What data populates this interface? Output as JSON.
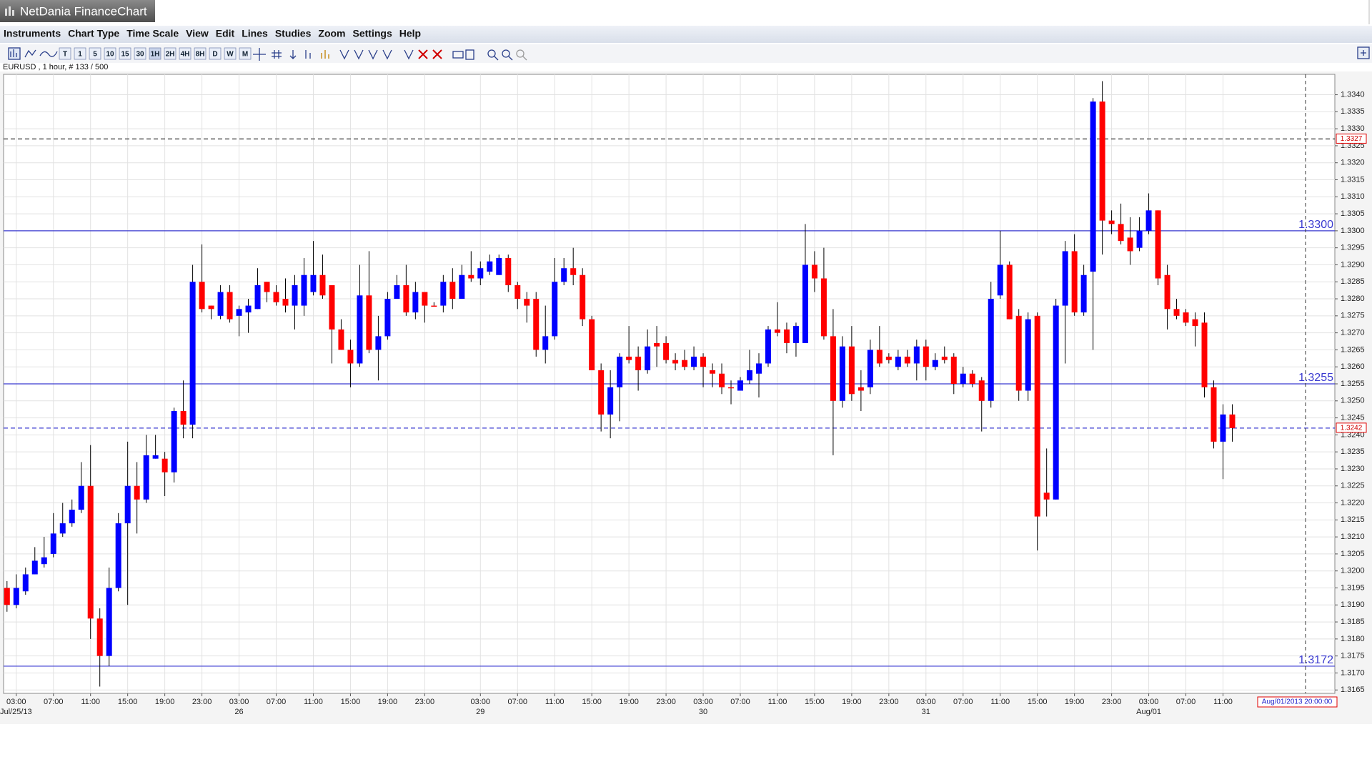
{
  "window": {
    "title": "NetDania FinanceChart"
  },
  "menu": [
    "Instruments",
    "Chart Type",
    "Time Scale",
    "View",
    "Edit",
    "Lines",
    "Studies",
    "Zoom",
    "Settings",
    "Help"
  ],
  "toolbar": [
    "T",
    "1",
    "5",
    "10",
    "15",
    "30",
    "1H",
    "2H",
    "4H",
    "8H",
    "D",
    "W",
    "M"
  ],
  "chart_data": {
    "type": "candlestick",
    "instrument_label": "EURUSD , 1 hour, # 133 / 500",
    "up_color": "#0000ff",
    "down_color": "#ff0000",
    "wick_color": "#000000",
    "grid": true,
    "ylim": [
      1.3164,
      1.3346
    ],
    "yticks": [
      1.3165,
      {
        "value": 1.317,
        "label": "1.3170"
      },
      1.3175,
      {
        "value": 1.318,
        "label": "1.3180"
      },
      1.3185,
      {
        "value": 1.319,
        "label": "1.3190"
      },
      1.3195,
      {
        "value": 1.32,
        "label": "1.3200"
      },
      1.3205,
      {
        "value": 1.321,
        "label": "1.3210"
      },
      1.3215,
      {
        "value": 1.322,
        "label": "1.3220"
      },
      1.3225,
      {
        "value": 1.323,
        "label": "1.3230"
      },
      1.3235,
      {
        "value": 1.324,
        "label": "1.3240"
      },
      1.3245,
      {
        "value": 1.325,
        "label": "1.3250"
      },
      1.3255,
      {
        "value": 1.326,
        "label": "1.3260"
      },
      1.3265,
      {
        "value": 1.327,
        "label": "1.3270"
      },
      1.3275,
      {
        "value": 1.328,
        "label": "1.3280"
      },
      1.3285,
      {
        "value": 1.329,
        "label": "1.3290"
      },
      1.3295,
      {
        "value": 1.33,
        "label": "1.3300"
      },
      1.3305,
      {
        "value": 1.331,
        "label": "1.3310"
      },
      1.3315,
      {
        "value": 1.332,
        "label": "1.3320"
      },
      1.3325,
      {
        "value": 1.333,
        "label": "1.3330"
      },
      1.3335,
      {
        "value": 1.334,
        "label": "1.3340"
      }
    ],
    "categories": [
      null,
      "03:00",
      null,
      null,
      null,
      "07:00",
      null,
      null,
      null,
      "11:00",
      null,
      null,
      null,
      "15:00",
      null,
      null,
      null,
      "19:00",
      null,
      null,
      null,
      "23:00",
      null,
      null,
      null,
      "03:00",
      null,
      null,
      null,
      "07:00",
      null,
      null,
      null,
      "11:00",
      null,
      null,
      null,
      "15:00",
      null,
      null,
      null,
      "19:00",
      null,
      null,
      null,
      "23:00",
      null,
      null,
      null,
      null,
      null,
      "03:00",
      null,
      null,
      null,
      "07:00",
      null,
      null,
      null,
      "11:00",
      null,
      null,
      null,
      "15:00",
      null,
      null,
      null,
      "19:00",
      null,
      null,
      null,
      "23:00",
      null,
      null,
      null,
      "03:00",
      null,
      null,
      null,
      "07:00",
      null,
      null,
      null,
      "11:00",
      null,
      null,
      null,
      "15:00",
      null,
      null,
      null,
      "19:00",
      null,
      null,
      null,
      "23:00",
      null,
      null,
      null,
      "03:00",
      null,
      null,
      null,
      "07:00",
      null,
      null,
      null,
      "11:00",
      null,
      null,
      null,
      "15:00",
      null,
      null,
      null,
      "19:00",
      null,
      null,
      null,
      "23:00",
      null,
      null,
      null,
      "03:00",
      null,
      null,
      null,
      "07:00",
      null,
      null,
      null,
      "11:00",
      null
    ],
    "category_dates": [
      null,
      "Jul/25/13",
      null,
      null,
      null,
      null,
      null,
      null,
      null,
      null,
      null,
      null,
      null,
      null,
      null,
      null,
      null,
      null,
      null,
      null,
      null,
      null,
      null,
      null,
      null,
      "26",
      null,
      null,
      null,
      null,
      null,
      null,
      null,
      null,
      null,
      null,
      null,
      null,
      null,
      null,
      null,
      null,
      null,
      null,
      null,
      null,
      null,
      null,
      null,
      null,
      null,
      "29",
      null,
      null,
      null,
      null,
      null,
      null,
      null,
      null,
      null,
      null,
      null,
      null,
      null,
      null,
      null,
      null,
      null,
      null,
      null,
      null,
      null,
      null,
      null,
      "30",
      null,
      null,
      null,
      null,
      null,
      null,
      null,
      null,
      null,
      null,
      null,
      null,
      null,
      null,
      null,
      null,
      null,
      null,
      null,
      null,
      null,
      null,
      null,
      "31",
      null,
      null,
      null,
      null,
      null,
      null,
      null,
      null,
      null,
      null,
      null,
      null,
      null,
      null,
      null,
      null,
      null,
      null,
      null,
      null,
      null,
      null,
      null,
      "Aug/01",
      null,
      null,
      null,
      null,
      null,
      null,
      null,
      null,
      null
    ],
    "candles": [
      [
        1.3195,
        1.3197,
        1.3188,
        1.319
      ],
      [
        1.319,
        1.3199,
        1.3189,
        1.3195
      ],
      [
        1.3194,
        1.3201,
        1.3193,
        1.3199
      ],
      [
        1.3199,
        1.3207,
        1.3199,
        1.3203
      ],
      [
        1.3202,
        1.321,
        1.3201,
        1.3204
      ],
      [
        1.3205,
        1.3217,
        1.3204,
        1.3211
      ],
      [
        1.3211,
        1.322,
        1.321,
        1.3214
      ],
      [
        1.3214,
        1.3221,
        1.3213,
        1.3218
      ],
      [
        1.3218,
        1.3232,
        1.3217,
        1.3225
      ],
      [
        1.3225,
        1.3237,
        1.318,
        1.3186
      ],
      [
        1.3186,
        1.3189,
        1.3166,
        1.3175
      ],
      [
        1.3175,
        1.3201,
        1.3172,
        1.3195
      ],
      [
        1.3195,
        1.3217,
        1.3194,
        1.3214
      ],
      [
        1.3214,
        1.3238,
        1.319,
        1.3225
      ],
      [
        1.3225,
        1.3232,
        1.3211,
        1.3221
      ],
      [
        1.3221,
        1.324,
        1.322,
        1.3234
      ],
      [
        1.3233,
        1.324,
        1.3233,
        1.3234
      ],
      [
        1.3233,
        1.3235,
        1.3222,
        1.3229
      ],
      [
        1.3229,
        1.3248,
        1.3226,
        1.3247
      ],
      [
        1.3247,
        1.3256,
        1.3239,
        1.3243
      ],
      [
        1.3243,
        1.329,
        1.3239,
        1.3285
      ],
      [
        1.3285,
        1.3296,
        1.3276,
        1.3277
      ],
      [
        1.3278,
        1.3278,
        1.3274,
        1.3277
      ],
      [
        1.3275,
        1.3284,
        1.3274,
        1.3282
      ],
      [
        1.3282,
        1.3284,
        1.3273,
        1.3274
      ],
      [
        1.3275,
        1.3278,
        1.3269,
        1.3277
      ],
      [
        1.3276,
        1.328,
        1.327,
        1.3278
      ],
      [
        1.3277,
        1.3289,
        1.3277,
        1.3284
      ],
      [
        1.3285,
        1.3285,
        1.3279,
        1.3282
      ],
      [
        1.3282,
        1.3284,
        1.3278,
        1.3279
      ],
      [
        1.328,
        1.3286,
        1.3276,
        1.3278
      ],
      [
        1.3278,
        1.3287,
        1.3271,
        1.3284
      ],
      [
        1.3278,
        1.3292,
        1.3275,
        1.3287
      ],
      [
        1.3282,
        1.3297,
        1.3281,
        1.3287
      ],
      [
        1.3287,
        1.3293,
        1.328,
        1.3281
      ],
      [
        1.3284,
        1.3284,
        1.3261,
        1.3271
      ],
      [
        1.3271,
        1.3274,
        1.3265,
        1.3265
      ],
      [
        1.3265,
        1.3268,
        1.3254,
        1.3261
      ],
      [
        1.3261,
        1.329,
        1.326,
        1.3281
      ],
      [
        1.3281,
        1.3294,
        1.3264,
        1.3265
      ],
      [
        1.3265,
        1.3275,
        1.3256,
        1.3269
      ],
      [
        1.3269,
        1.3282,
        1.3268,
        1.328
      ],
      [
        1.328,
        1.3287,
        1.328,
        1.3284
      ],
      [
        1.3284,
        1.329,
        1.3275,
        1.3276
      ],
      [
        1.3276,
        1.3285,
        1.3274,
        1.3282
      ],
      [
        1.3282,
        1.3282,
        1.3273,
        1.3278
      ],
      [
        1.3278,
        1.3279,
        1.3278,
        1.3278
      ],
      [
        1.3278,
        1.3287,
        1.3276,
        1.3285
      ],
      [
        1.3285,
        1.3289,
        1.3277,
        1.328
      ],
      [
        1.328,
        1.329,
        1.328,
        1.3287
      ],
      [
        1.3287,
        1.3294,
        1.3285,
        1.3286
      ],
      [
        1.3286,
        1.3291,
        1.3284,
        1.3289
      ],
      [
        1.3288,
        1.3293,
        1.3287,
        1.3291
      ],
      [
        1.3287,
        1.3293,
        1.3287,
        1.3292
      ],
      [
        1.3292,
        1.3293,
        1.3282,
        1.3284
      ],
      [
        1.3284,
        1.3285,
        1.3277,
        1.328
      ],
      [
        1.328,
        1.3282,
        1.3273,
        1.3278
      ],
      [
        1.328,
        1.3282,
        1.3263,
        1.3265
      ],
      [
        1.3265,
        1.3278,
        1.3261,
        1.3269
      ],
      [
        1.3269,
        1.3292,
        1.3268,
        1.3285
      ],
      [
        1.3285,
        1.3292,
        1.3284,
        1.3289
      ],
      [
        1.3289,
        1.3295,
        1.3284,
        1.3287
      ],
      [
        1.3287,
        1.3289,
        1.3272,
        1.3274
      ],
      [
        1.3274,
        1.3275,
        1.3259,
        1.3259
      ],
      [
        1.3259,
        1.3261,
        1.3241,
        1.3246
      ],
      [
        1.3246,
        1.3259,
        1.3239,
        1.3254
      ],
      [
        1.3254,
        1.3264,
        1.3244,
        1.3263
      ],
      [
        1.3263,
        1.3272,
        1.3261,
        1.3262
      ],
      [
        1.3263,
        1.3266,
        1.3253,
        1.3259
      ],
      [
        1.3259,
        1.3271,
        1.3258,
        1.3266
      ],
      [
        1.3267,
        1.3272,
        1.326,
        1.3266
      ],
      [
        1.3267,
        1.3269,
        1.3261,
        1.3262
      ],
      [
        1.3262,
        1.3264,
        1.3259,
        1.3261
      ],
      [
        1.3262,
        1.3265,
        1.3259,
        1.326
      ],
      [
        1.326,
        1.3266,
        1.3259,
        1.3263
      ],
      [
        1.3263,
        1.3264,
        1.3254,
        1.326
      ],
      [
        1.3259,
        1.3261,
        1.3254,
        1.3258
      ],
      [
        1.3258,
        1.3261,
        1.3252,
        1.3254
      ],
      [
        1.3254,
        1.3256,
        1.3249,
        1.3254
      ],
      [
        1.3253,
        1.3257,
        1.3253,
        1.3256
      ],
      [
        1.3256,
        1.3265,
        1.3255,
        1.3259
      ],
      [
        1.3258,
        1.3264,
        1.3251,
        1.3261
      ],
      [
        1.3261,
        1.3272,
        1.326,
        1.3271
      ],
      [
        1.3271,
        1.3279,
        1.3269,
        1.327
      ],
      [
        1.3271,
        1.3273,
        1.3264,
        1.3267
      ],
      [
        1.3267,
        1.3273,
        1.3263,
        1.3272
      ],
      [
        1.3267,
        1.3302,
        1.3267,
        1.329
      ],
      [
        1.329,
        1.3294,
        1.3282,
        1.3286
      ],
      [
        1.3286,
        1.3295,
        1.3268,
        1.3269
      ],
      [
        1.3269,
        1.3277,
        1.3234,
        1.325
      ],
      [
        1.325,
        1.3269,
        1.3248,
        1.3266
      ],
      [
        1.3266,
        1.3272,
        1.325,
        1.3252
      ],
      [
        1.3254,
        1.3259,
        1.3247,
        1.3253
      ],
      [
        1.3254,
        1.3268,
        1.3252,
        1.3265
      ],
      [
        1.3265,
        1.3272,
        1.326,
        1.3261
      ],
      [
        1.3263,
        1.3264,
        1.3261,
        1.3262
      ],
      [
        1.326,
        1.3265,
        1.3259,
        1.3263
      ],
      [
        1.3263,
        1.3265,
        1.326,
        1.3261
      ],
      [
        1.3261,
        1.3268,
        1.3256,
        1.3266
      ],
      [
        1.3266,
        1.3268,
        1.3256,
        1.326
      ],
      [
        1.326,
        1.3264,
        1.3259,
        1.3262
      ],
      [
        1.3263,
        1.3266,
        1.3261,
        1.3262
      ],
      [
        1.3263,
        1.3264,
        1.3252,
        1.3255
      ],
      [
        1.3255,
        1.326,
        1.3254,
        1.3258
      ],
      [
        1.3258,
        1.3259,
        1.3254,
        1.3255
      ],
      [
        1.3256,
        1.3257,
        1.3241,
        1.325
      ],
      [
        1.325,
        1.3285,
        1.3248,
        1.328
      ],
      [
        1.3281,
        1.33,
        1.328,
        1.329
      ],
      [
        1.329,
        1.3291,
        1.3274,
        1.3274
      ],
      [
        1.3275,
        1.3277,
        1.325,
        1.3253
      ],
      [
        1.3253,
        1.3276,
        1.325,
        1.3274
      ],
      [
        1.3275,
        1.3276,
        1.3206,
        1.3216
      ],
      [
        1.3223,
        1.3236,
        1.3216,
        1.3221
      ],
      [
        1.3221,
        1.328,
        1.3221,
        1.3278
      ],
      [
        1.3278,
        1.3297,
        1.3261,
        1.3294
      ],
      [
        1.3294,
        1.3299,
        1.3275,
        1.3276
      ],
      [
        1.3276,
        1.329,
        1.3275,
        1.3287
      ],
      [
        1.3288,
        1.3339,
        1.3265,
        1.3338
      ],
      [
        1.3338,
        1.3344,
        1.3293,
        1.3303
      ],
      [
        1.3303,
        1.3306,
        1.3299,
        1.3302
      ],
      [
        1.3302,
        1.3308,
        1.3296,
        1.3297
      ],
      [
        1.3298,
        1.3304,
        1.329,
        1.3294
      ],
      [
        1.3295,
        1.3304,
        1.3294,
        1.33
      ],
      [
        1.33,
        1.3311,
        1.3299,
        1.3306
      ],
      [
        1.3306,
        1.3306,
        1.3284,
        1.3286
      ],
      [
        1.3287,
        1.329,
        1.3271,
        1.3277
      ],
      [
        1.3277,
        1.328,
        1.3274,
        1.3275
      ],
      [
        1.3276,
        1.3277,
        1.3272,
        1.3273
      ],
      [
        1.3274,
        1.3276,
        1.3266,
        1.3272
      ],
      [
        1.3273,
        1.3276,
        1.3251,
        1.3254
      ],
      [
        1.3254,
        1.3256,
        1.3236,
        1.3238
      ],
      [
        1.3238,
        1.3249,
        1.3227,
        1.3246
      ],
      [
        1.3246,
        1.3249,
        1.3238,
        1.3242
      ]
    ],
    "hlines": [
      {
        "value": 1.33,
        "label": "1.3300",
        "color": "#3a3ad0"
      },
      {
        "value": 1.3255,
        "label": "1.3255",
        "color": "#3a3ad0"
      },
      {
        "value": 1.3172,
        "label": "1.3172",
        "color": "#3a3ad0"
      }
    ],
    "price_markers": [
      {
        "value": 1.3327,
        "label": "1.3327",
        "line_color": "#333333"
      },
      {
        "value": 1.3242,
        "label": "1.3242",
        "line_color": "#3a3ad0"
      }
    ],
    "timestamp": "Aug/01/2013 20:00:00"
  }
}
